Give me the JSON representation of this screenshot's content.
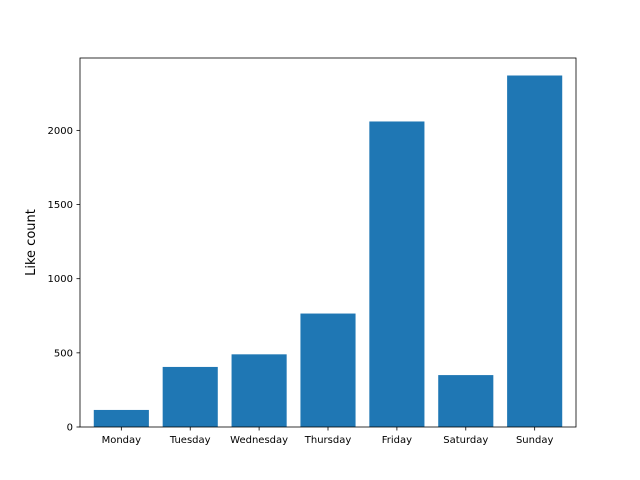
{
  "chart_data": {
    "type": "bar",
    "title": "",
    "xlabel": "",
    "ylabel": "Like count",
    "categories": [
      "Monday",
      "Tuesday",
      "Wednesday",
      "Thursday",
      "Friday",
      "Saturday",
      "Sunday"
    ],
    "values": [
      115,
      405,
      490,
      765,
      2060,
      350,
      2370
    ],
    "ylim": [
      0,
      2488
    ],
    "yticks": [
      0,
      500,
      1000,
      1500,
      2000
    ],
    "grid": false,
    "bar_color": "#1f77b4"
  }
}
